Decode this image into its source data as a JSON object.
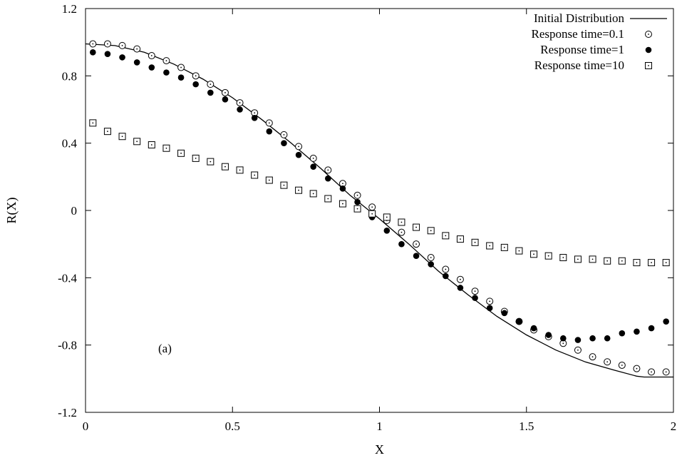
{
  "chart_data": {
    "type": "scatter",
    "xlabel": "X",
    "ylabel": "R(X)",
    "xlim": [
      0,
      2
    ],
    "ylim": [
      -1.2,
      1.2
    ],
    "xticks": [
      "0",
      "0.5",
      "1",
      "1.5",
      "2"
    ],
    "yticks": [
      "-1.2",
      "-0.8",
      "-0.4",
      "0",
      "0.4",
      "0.8",
      "1.2"
    ],
    "grid": false,
    "legend_position": "top-right",
    "annotation": "(a)",
    "line": {
      "name": "Initial Distribution",
      "x": [
        0.0,
        0.1,
        0.2,
        0.3,
        0.4,
        0.5,
        0.6,
        0.7,
        0.8,
        0.9,
        1.0,
        1.1,
        1.2,
        1.3,
        1.4,
        1.5,
        1.6,
        1.7,
        1.8,
        1.875,
        1.9,
        1.95,
        2.0
      ],
      "y": [
        0.99,
        0.98,
        0.94,
        0.87,
        0.78,
        0.67,
        0.54,
        0.4,
        0.25,
        0.09,
        -0.05,
        -0.2,
        -0.36,
        -0.5,
        -0.63,
        -0.74,
        -0.83,
        -0.9,
        -0.95,
        -0.985,
        -0.99,
        -0.99,
        -0.99
      ]
    },
    "series": [
      {
        "name": "Response time=0.1",
        "marker": "open-circle",
        "x": [
          0.025,
          0.075,
          0.125,
          0.175,
          0.225,
          0.275,
          0.325,
          0.375,
          0.425,
          0.475,
          0.525,
          0.575,
          0.625,
          0.675,
          0.725,
          0.775,
          0.825,
          0.875,
          0.925,
          0.975,
          1.025,
          1.075,
          1.125,
          1.175,
          1.225,
          1.275,
          1.325,
          1.375,
          1.425,
          1.475,
          1.525,
          1.575,
          1.625,
          1.675,
          1.725,
          1.775,
          1.825,
          1.875,
          1.925,
          1.975
        ],
        "y": [
          0.99,
          0.99,
          0.98,
          0.96,
          0.92,
          0.89,
          0.85,
          0.8,
          0.75,
          0.7,
          0.64,
          0.58,
          0.52,
          0.45,
          0.38,
          0.31,
          0.24,
          0.16,
          0.09,
          0.02,
          -0.06,
          -0.13,
          -0.2,
          -0.28,
          -0.35,
          -0.41,
          -0.48,
          -0.54,
          -0.6,
          -0.66,
          -0.71,
          -0.75,
          -0.79,
          -0.83,
          -0.87,
          -0.9,
          -0.92,
          -0.94,
          -0.96,
          -0.96
        ]
      },
      {
        "name": "Response time=1",
        "marker": "filled-circle",
        "x": [
          0.025,
          0.075,
          0.125,
          0.175,
          0.225,
          0.275,
          0.325,
          0.375,
          0.425,
          0.475,
          0.525,
          0.575,
          0.625,
          0.675,
          0.725,
          0.775,
          0.825,
          0.875,
          0.925,
          0.975,
          1.025,
          1.075,
          1.125,
          1.175,
          1.225,
          1.275,
          1.325,
          1.375,
          1.425,
          1.475,
          1.525,
          1.575,
          1.625,
          1.675,
          1.725,
          1.775,
          1.825,
          1.875,
          1.925,
          1.975
        ],
        "y": [
          0.94,
          0.93,
          0.91,
          0.88,
          0.85,
          0.82,
          0.79,
          0.75,
          0.7,
          0.66,
          0.6,
          0.55,
          0.47,
          0.4,
          0.33,
          0.26,
          0.19,
          0.13,
          0.05,
          -0.04,
          -0.12,
          -0.2,
          -0.27,
          -0.32,
          -0.39,
          -0.46,
          -0.52,
          -0.58,
          -0.61,
          -0.66,
          -0.7,
          -0.74,
          -0.76,
          -0.77,
          -0.76,
          -0.76,
          -0.73,
          -0.72,
          -0.7,
          -0.66
        ]
      },
      {
        "name": "Response time=10",
        "marker": "dotted-square",
        "x": [
          0.025,
          0.075,
          0.125,
          0.175,
          0.225,
          0.275,
          0.325,
          0.375,
          0.425,
          0.475,
          0.525,
          0.575,
          0.625,
          0.675,
          0.725,
          0.775,
          0.825,
          0.875,
          0.925,
          0.975,
          1.025,
          1.075,
          1.125,
          1.175,
          1.225,
          1.275,
          1.325,
          1.375,
          1.425,
          1.475,
          1.525,
          1.575,
          1.625,
          1.675,
          1.725,
          1.775,
          1.825,
          1.875,
          1.925,
          1.975
        ],
        "y": [
          0.52,
          0.47,
          0.44,
          0.41,
          0.39,
          0.37,
          0.34,
          0.31,
          0.29,
          0.26,
          0.24,
          0.21,
          0.18,
          0.15,
          0.12,
          0.1,
          0.07,
          0.04,
          0.01,
          -0.02,
          -0.04,
          -0.07,
          -0.1,
          -0.12,
          -0.15,
          -0.17,
          -0.19,
          -0.21,
          -0.22,
          -0.24,
          -0.26,
          -0.27,
          -0.28,
          -0.29,
          -0.29,
          -0.3,
          -0.3,
          -0.31,
          -0.31,
          -0.31
        ]
      }
    ]
  }
}
